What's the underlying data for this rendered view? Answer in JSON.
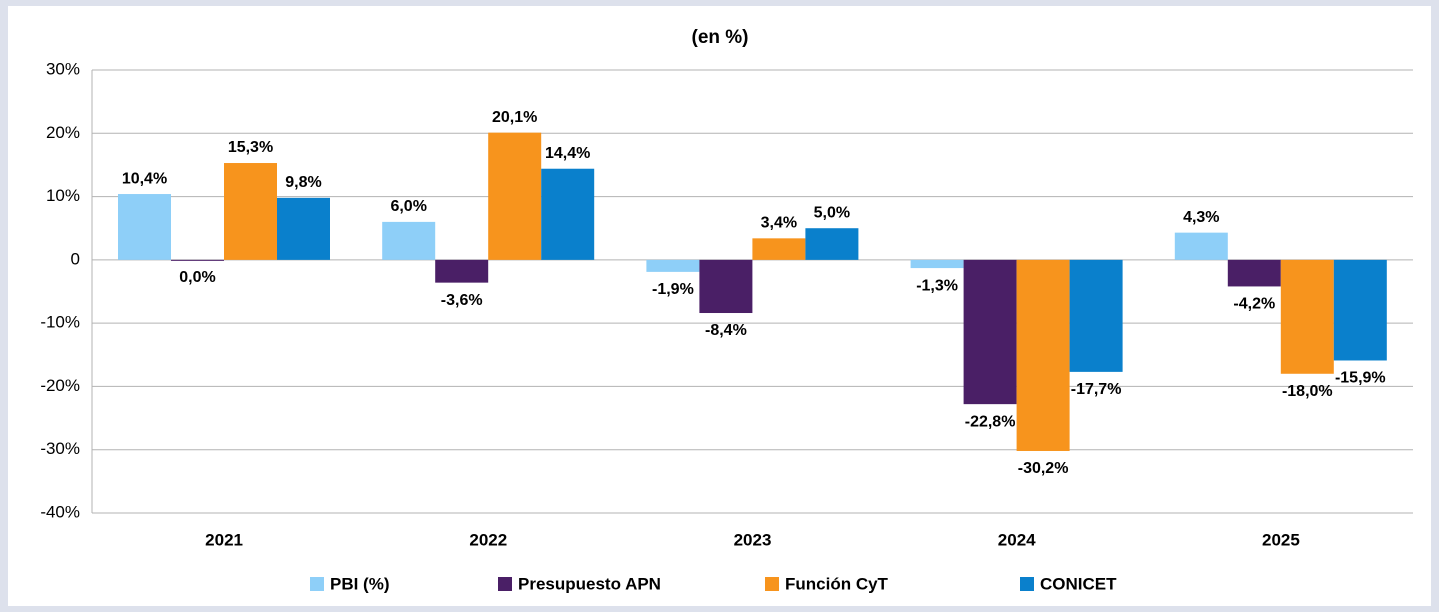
{
  "chart_data": {
    "type": "bar",
    "title": "(en %)",
    "categories": [
      "2021",
      "2022",
      "2023",
      "2024",
      "2025"
    ],
    "series": [
      {
        "name": "PBI (%)",
        "color": "#8ecff8",
        "values": [
          10.4,
          6.0,
          -1.9,
          -1.3,
          4.3
        ],
        "value_labels": [
          "10,4%",
          "6,0%",
          "-1,9%",
          "-1,3%",
          "4,3%"
        ]
      },
      {
        "name": "Presupuesto APN",
        "color": "#4a1f66",
        "values": [
          0.0,
          -3.6,
          -8.4,
          -22.8,
          -4.2
        ],
        "value_labels": [
          "0,0%",
          "-3,6%",
          "-8,4%",
          "-22,8%",
          "-4,2%"
        ]
      },
      {
        "name": "Función CyT",
        "color": "#f7941d",
        "values": [
          15.3,
          20.1,
          3.4,
          -30.2,
          -18.0
        ],
        "value_labels": [
          "15,3%",
          "20,1%",
          "3,4%",
          "-30,2%",
          "-18,0%"
        ]
      },
      {
        "name": "CONICET",
        "color": "#0a80cc",
        "values": [
          9.8,
          14.4,
          5.0,
          -17.7,
          -15.9
        ],
        "value_labels": [
          "9,8%",
          "14,4%",
          "5,0%",
          "-17,7%",
          "-15,9%"
        ]
      }
    ],
    "ylim": [
      -40,
      30
    ],
    "yticks": [
      {
        "value": -40,
        "label": "-40%"
      },
      {
        "value": -30,
        "label": "-30%"
      },
      {
        "value": -20,
        "label": "-20%"
      },
      {
        "value": -10,
        "label": "-10%"
      },
      {
        "value": 0,
        "label": "0"
      },
      {
        "value": 10,
        "label": "10%"
      },
      {
        "value": 20,
        "label": "20%"
      },
      {
        "value": 30,
        "label": "30%"
      }
    ],
    "grid": true,
    "legend": "bottom"
  }
}
